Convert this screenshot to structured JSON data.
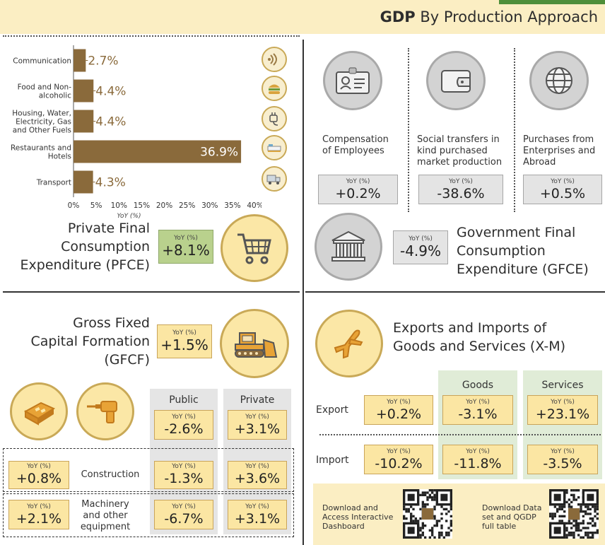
{
  "header": {
    "title_bold": "GDP",
    "title_rest": " By Production Approach"
  },
  "colors": {
    "bar": "#8a6a3b",
    "header_bg": "#fbeec3",
    "yellow_box": "#fbe6a3",
    "green_box": "#b9d18d",
    "gray_box": "#e4e4e4"
  },
  "chart_data": {
    "type": "bar",
    "orientation": "horizontal",
    "categories": [
      "Communication",
      "Food and Non-alcoholic",
      "Housing, Water, Electricity, Gas and Other Fuels",
      "Restaurants and Hotels",
      "Transport"
    ],
    "category_lines": [
      [
        "Communication"
      ],
      [
        "Food and Non-",
        "alcoholic"
      ],
      [
        "Housing, Water,",
        "Electricity, Gas",
        "and Other Fuels"
      ],
      [
        "Restaurants and",
        "Hotels"
      ],
      [
        "Transport"
      ]
    ],
    "values": [
      2.7,
      4.4,
      4.4,
      36.9,
      4.3
    ],
    "value_labels": [
      "2.7%",
      "4.4%",
      "4.4%",
      "36.9%",
      "4.3%"
    ],
    "xlabel": "YoY (%)",
    "xlim": [
      0,
      40
    ],
    "xticks": [
      "0%",
      "5%",
      "10%",
      "15%",
      "20%",
      "25%",
      "30%",
      "35%",
      "40%"
    ],
    "icons": [
      "wifi-icon",
      "burger-icon",
      "plug-icon",
      "hotel-bed-icon",
      "truck-icon"
    ]
  },
  "pfce": {
    "title": [
      "Private Final",
      "Consumption",
      "Expenditure (PFCE)"
    ],
    "yoy_label": "YoY (%)",
    "yoy_value": "+8.1%"
  },
  "gfce_items": [
    {
      "label": [
        "Compensation",
        "of Employees"
      ],
      "yoy_label": "YoY (%)",
      "yoy_value": "+0.2%",
      "icon": "id-card-icon"
    },
    {
      "label": [
        "Social transfers in",
        "kind purchased",
        "market production"
      ],
      "yoy_label": "YoY (%)",
      "yoy_value": "-38.6%",
      "icon": "wallet-icon"
    },
    {
      "label": [
        "Purchases from",
        "Enterprises and",
        "Abroad"
      ],
      "yoy_label": "YoY (%)",
      "yoy_value": "+0.5%",
      "icon": "globe-icon"
    }
  ],
  "gfce": {
    "title": [
      "Government Final",
      "Consumption",
      "Expenditure (GFCE)"
    ],
    "yoy_label": "YoY (%)",
    "yoy_value": "-4.9%"
  },
  "gfcf": {
    "title": [
      "Gross Fixed",
      "Capital Formation",
      "(GFCF)"
    ],
    "yoy_label": "YoY (%)",
    "yoy_value": "+1.5%",
    "col_public": "Public",
    "col_private": "Private",
    "public_total": "-2.6%",
    "private_total": "+3.1%",
    "rows": [
      {
        "label": [
          "Construction"
        ],
        "total": "+0.8%",
        "public": "-1.3%",
        "private": "+3.6%"
      },
      {
        "label": [
          "Machinery",
          "and other",
          "equipment"
        ],
        "total": "+2.1%",
        "public": "-6.7%",
        "private": "+3.1%"
      }
    ]
  },
  "xm": {
    "title": [
      "Exports and Imports of",
      "Goods and Services (X-M)"
    ],
    "col_goods": "Goods",
    "col_services": "Services",
    "rows": [
      {
        "label": "Export",
        "total": "+0.2%",
        "goods": "-3.1%",
        "services": "+23.1%"
      },
      {
        "label": "Import",
        "total": "-10.2%",
        "goods": "-11.8%",
        "services": "-3.5%"
      }
    ]
  },
  "downloads": [
    {
      "text": [
        "Download and",
        "Access Interactive",
        "Dashboard"
      ]
    },
    {
      "text": [
        "Download Data",
        "set and QGDP",
        "full table"
      ]
    }
  ],
  "yoy_label": "YoY (%)"
}
